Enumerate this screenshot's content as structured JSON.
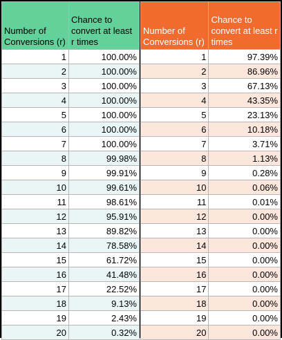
{
  "headers": {
    "left_col1": "Number of Conversions (r)",
    "left_col2": "Chance to convert at least r times",
    "right_col1": "Number of Conversions (r)",
    "right_col2": "Chance to convert at least r times"
  },
  "colors": {
    "green_header": "#63d29a",
    "orange_header": "#f26b2e",
    "green_alt": "#eaf6f6",
    "orange_alt": "#fde6dc"
  },
  "left_rows": [
    [
      "1",
      "100.00%"
    ],
    [
      "2",
      "100.00%"
    ],
    [
      "3",
      "100.00%"
    ],
    [
      "4",
      "100.00%"
    ],
    [
      "5",
      "100.00%"
    ],
    [
      "6",
      "100.00%"
    ],
    [
      "7",
      "100.00%"
    ],
    [
      "8",
      "99.98%"
    ],
    [
      "9",
      "99.91%"
    ],
    [
      "10",
      "99.61%"
    ],
    [
      "11",
      "98.61%"
    ],
    [
      "12",
      "95.91%"
    ],
    [
      "13",
      "89.82%"
    ],
    [
      "14",
      "78.58%"
    ],
    [
      "15",
      "61.72%"
    ],
    [
      "16",
      "41.48%"
    ],
    [
      "17",
      "22.52%"
    ],
    [
      "18",
      "9.13%"
    ],
    [
      "19",
      "2.43%"
    ],
    [
      "20",
      "0.32%"
    ]
  ],
  "right_rows": [
    [
      "1",
      "97.39%"
    ],
    [
      "2",
      "86.96%"
    ],
    [
      "3",
      "67.13%"
    ],
    [
      "4",
      "43.35%"
    ],
    [
      "5",
      "23.13%"
    ],
    [
      "6",
      "10.18%"
    ],
    [
      "7",
      "3.71%"
    ],
    [
      "8",
      "1.13%"
    ],
    [
      "9",
      "0.28%"
    ],
    [
      "10",
      "0.06%"
    ],
    [
      "11",
      "0.01%"
    ],
    [
      "12",
      "0.00%"
    ],
    [
      "13",
      "0.00%"
    ],
    [
      "14",
      "0.00%"
    ],
    [
      "15",
      "0.00%"
    ],
    [
      "16",
      "0.00%"
    ],
    [
      "17",
      "0.00%"
    ],
    [
      "18",
      "0.00%"
    ],
    [
      "19",
      "0.00%"
    ],
    [
      "20",
      "0.00%"
    ]
  ]
}
